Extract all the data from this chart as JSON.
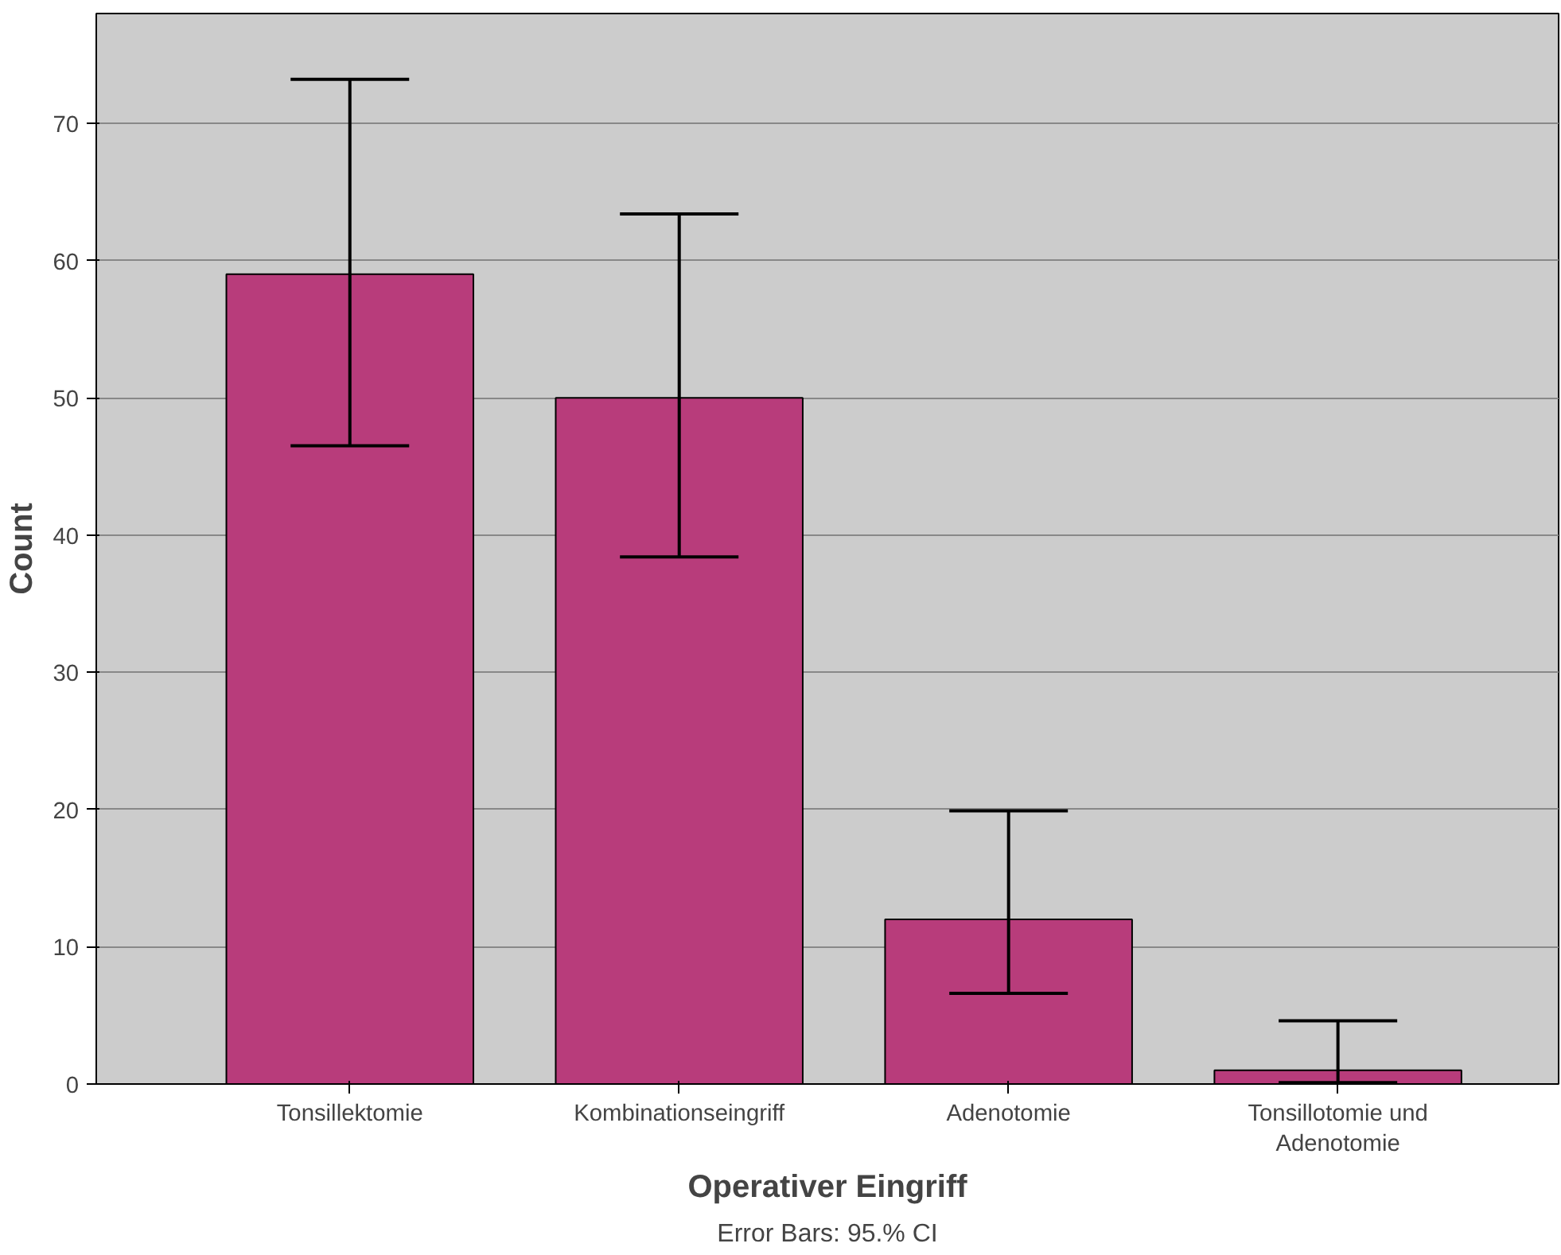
{
  "chart_data": {
    "type": "bar",
    "xlabel": "Operativer Eingriff",
    "ylabel": "Count",
    "categories": [
      "Tonsillektomie",
      "Kombinationseingriff",
      "Adenotomie",
      "Tonsillotomie und Adenotomie"
    ],
    "values": [
      59,
      50,
      12,
      1
    ],
    "errors": [
      [
        46.5,
        73.2
      ],
      [
        38.4,
        63.4
      ],
      [
        6.6,
        19.9
      ],
      [
        0.1,
        4.6
      ]
    ],
    "color": "#b83c7b",
    "ylim": [
      0,
      78
    ],
    "yticks": [
      0,
      10,
      20,
      30,
      40,
      50,
      60,
      70
    ],
    "grid": "y",
    "annotations": [
      "Error Bars: 95.% CI"
    ]
  }
}
